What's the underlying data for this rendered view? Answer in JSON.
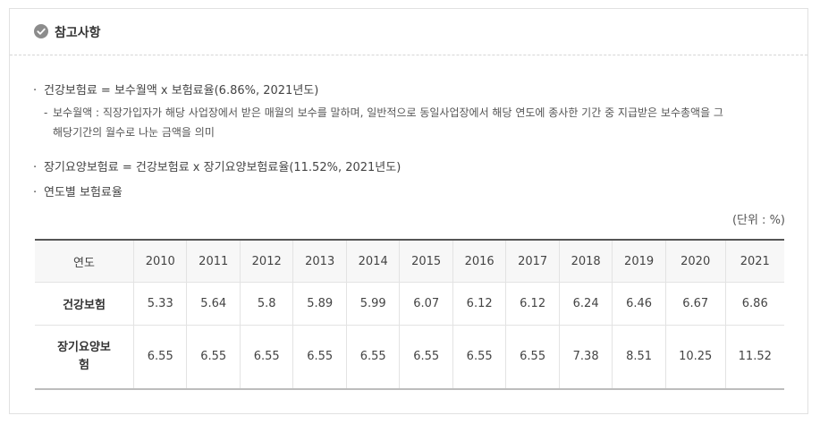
{
  "header": {
    "title": "참고사항"
  },
  "notes": {
    "item1": "건강보험료 = 보수월액 x 보험료율(6.86%, 2021년도)",
    "item1_sub_line1": "보수월액 : 직장가입자가 해당 사업장에서 받은 매월의 보수를 말하며, 일반적으로 동일사업장에서 해당 연도에 종사한 기간 중 지급받은 보수총액을 그",
    "item1_sub_line2": "해당기간의 월수로 나눈 금액을 의미",
    "item2": "장기요양보험료 = 건강보험료 x 장기요양보험료율(11.52%, 2021년도)",
    "item3": "연도별 보험료율"
  },
  "unit_label": "(단위 : %)",
  "table": {
    "header_label": "연도",
    "years": [
      "2010",
      "2011",
      "2012",
      "2013",
      "2014",
      "2015",
      "2016",
      "2017",
      "2018",
      "2019",
      "2020",
      "2021"
    ],
    "rows": [
      {
        "label": "건강보험",
        "values": [
          "5.33",
          "5.64",
          "5.8",
          "5.89",
          "5.99",
          "6.07",
          "6.12",
          "6.12",
          "6.24",
          "6.46",
          "6.67",
          "6.86"
        ]
      },
      {
        "label_line1": "장기요양보",
        "label_line2": "험",
        "values": [
          "6.55",
          "6.55",
          "6.55",
          "6.55",
          "6.55",
          "6.55",
          "6.55",
          "6.55",
          "7.38",
          "8.51",
          "10.25",
          "11.52"
        ]
      }
    ]
  }
}
